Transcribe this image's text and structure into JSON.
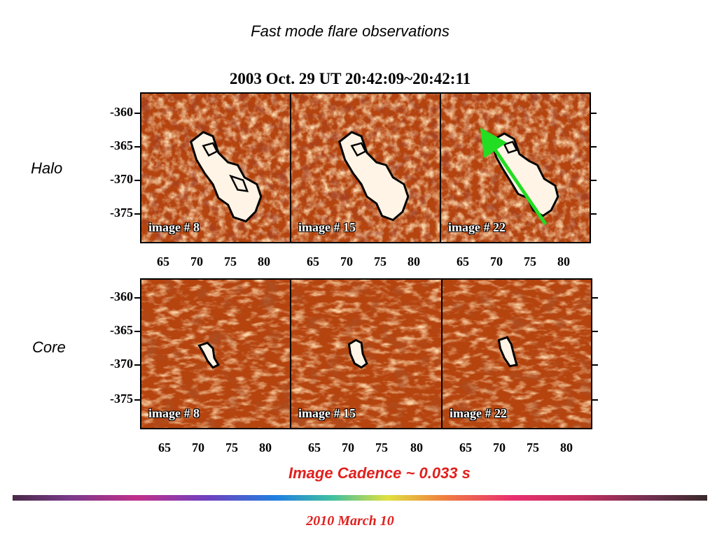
{
  "slide": {
    "title": "Fast mode flare observations",
    "figure_title": "2003 Oct. 29  UT 20:42:09~20:42:11",
    "cadence": "Image Cadence ~ 0.033 s",
    "date": "2010 March 10"
  },
  "rows": [
    {
      "label": "Halo",
      "panels": [
        "image # 8",
        "image # 15",
        "image # 22"
      ]
    },
    {
      "label": "Core",
      "panels": [
        "image # 8",
        "image # 15",
        "image # 22"
      ]
    }
  ],
  "axes": {
    "y_ticks": [
      "-360",
      "-365",
      "-370",
      "-375"
    ],
    "x_ticks": [
      "65",
      "70",
      "75",
      "80"
    ]
  },
  "colors": {
    "map_base": "#b5440f",
    "contour": "#000000",
    "arrow": "#22dd22",
    "accent_red": "#e0211e"
  }
}
